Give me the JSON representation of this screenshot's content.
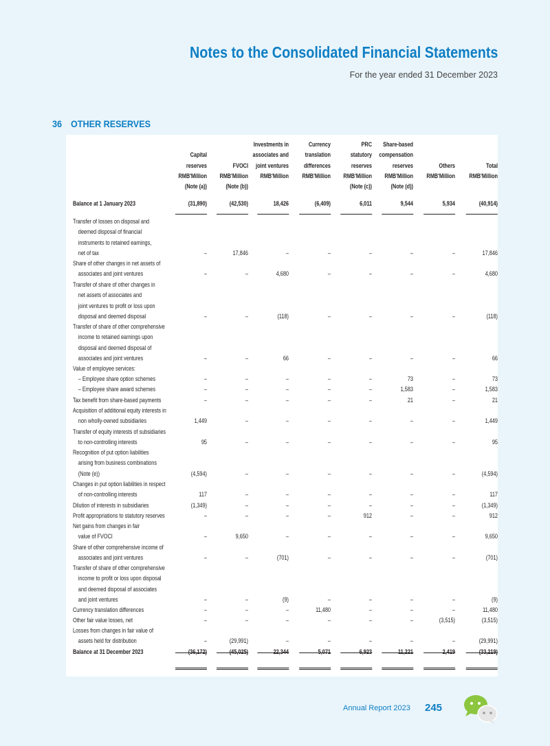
{
  "header": {
    "title": "Notes to the Consolidated Financial Statements",
    "subtitle": "For the year ended 31 December 2023"
  },
  "section": {
    "number": "36",
    "title": "OTHER RESERVES"
  },
  "columns": [
    {
      "lines": [
        "",
        "Capital",
        "reserves",
        "RMB'Million",
        "(Note (a))"
      ]
    },
    {
      "lines": [
        "",
        "",
        "FVOCI",
        "RMB'Million",
        "(Note (b))"
      ]
    },
    {
      "lines": [
        "Investments in",
        "associates and",
        "joint ventures",
        "RMB'Million",
        ""
      ]
    },
    {
      "lines": [
        "Currency",
        "translation",
        "differences",
        "RMB'Million",
        ""
      ]
    },
    {
      "lines": [
        "PRC",
        "statutory",
        "reserves",
        "RMB'Million",
        "(Note (c))"
      ]
    },
    {
      "lines": [
        "Share-based",
        "compensation",
        "reserves",
        "RMB'Million",
        "(Note (d))"
      ]
    },
    {
      "lines": [
        "",
        "",
        "Others",
        "RMB'Million",
        ""
      ]
    },
    {
      "lines": [
        "",
        "",
        "Total",
        "RMB'Million",
        ""
      ]
    }
  ],
  "rows": [
    {
      "label": [
        "Balance at 1 January 2023"
      ],
      "bold": true,
      "values": [
        "(31,890)",
        "(42,530)",
        "18,426",
        "(6,409)",
        "6,011",
        "9,544",
        "5,934",
        "(40,914)"
      ]
    },
    {
      "label": [
        "Transfer of losses on disposal and",
        "deemed disposal of financial",
        "instruments to retained earnings,",
        "net of tax"
      ],
      "values": [
        "–",
        "17,846",
        "–",
        "–",
        "–",
        "–",
        "–",
        "17,846"
      ]
    },
    {
      "label": [
        "Share of other changes in net assets of",
        "associates and joint ventures"
      ],
      "values": [
        "–",
        "–",
        "4,680",
        "–",
        "–",
        "–",
        "–",
        "4,680"
      ]
    },
    {
      "label": [
        "Transfer of share of other changes in",
        "net assets of associates and",
        "joint ventures to profit or loss upon",
        "disposal and deemed disposal"
      ],
      "values": [
        "–",
        "–",
        "(118)",
        "–",
        "–",
        "–",
        "–",
        "(118)"
      ]
    },
    {
      "label": [
        "Transfer of share of other comprehensive",
        "income to retained earnings upon",
        "disposal and deemed disposal of",
        "associates and joint ventures"
      ],
      "values": [
        "–",
        "–",
        "66",
        "–",
        "–",
        "–",
        "–",
        "66"
      ]
    },
    {
      "label": [
        "Value of employee services:"
      ],
      "values": [
        "",
        "",
        "",
        "",
        "",
        "",
        "",
        ""
      ]
    },
    {
      "label": [
        "– Employee share option  schemes"
      ],
      "values": [
        "–",
        "–",
        "–",
        "–",
        "–",
        "73",
        "–",
        "73"
      ]
    },
    {
      "label": [
        "– Employee share award  schemes"
      ],
      "values": [
        "–",
        "–",
        "–",
        "–",
        "–",
        "1,583",
        "–",
        "1,583"
      ]
    },
    {
      "label": [
        "Tax benefit from share-based payments"
      ],
      "values": [
        "–",
        "–",
        "–",
        "–",
        "–",
        "21",
        "–",
        "21"
      ]
    },
    {
      "label": [
        "Acquisition of additional equity interests in",
        "non wholly-owned subsidiaries"
      ],
      "values": [
        "1,449",
        "–",
        "–",
        "–",
        "–",
        "–",
        "–",
        "1,449"
      ]
    },
    {
      "label": [
        "Transfer of equity interests of subsidiaries",
        "to non-controlling interests"
      ],
      "values": [
        "95",
        "–",
        "–",
        "–",
        "–",
        "–",
        "–",
        "95"
      ]
    },
    {
      "label": [
        "Recognition of put option liabilities",
        "arising from business combinations",
        "(Note (e))"
      ],
      "values": [
        "(4,594)",
        "–",
        "–",
        "–",
        "–",
        "–",
        "–",
        "(4,594)"
      ]
    },
    {
      "label": [
        "Changes in put option liabilities in respect",
        "of non-controlling interests"
      ],
      "values": [
        "117",
        "–",
        "–",
        "–",
        "–",
        "–",
        "–",
        "117"
      ]
    },
    {
      "label": [
        "Dilution of interests in subsidiaries"
      ],
      "values": [
        "(1,349)",
        "–",
        "–",
        "–",
        "–",
        "–",
        "–",
        "(1,349)"
      ]
    },
    {
      "label": [
        "Profit appropriations to statutory reserves"
      ],
      "values": [
        "–",
        "–",
        "–",
        "–",
        "912",
        "–",
        "–",
        "912"
      ]
    },
    {
      "label": [
        "Net gains from changes in fair",
        "value of FVOCI"
      ],
      "values": [
        "–",
        "9,650",
        "–",
        "–",
        "–",
        "–",
        "–",
        "9,650"
      ]
    },
    {
      "label": [
        "Share of other comprehensive income of",
        "associates and joint ventures"
      ],
      "values": [
        "–",
        "–",
        "(701)",
        "–",
        "–",
        "–",
        "–",
        "(701)"
      ]
    },
    {
      "label": [
        "Transfer of share of other comprehensive",
        "income to profit or loss upon disposal",
        "and deemed disposal of associates",
        "and joint ventures"
      ],
      "values": [
        "–",
        "–",
        "(9)",
        "–",
        "–",
        "–",
        "–",
        "(9)"
      ]
    },
    {
      "label": [
        "Currency translation differences"
      ],
      "values": [
        "–",
        "–",
        "–",
        "11,480",
        "–",
        "–",
        "–",
        "11,480"
      ]
    },
    {
      "label": [
        "Other fair value losses, net"
      ],
      "values": [
        "–",
        "–",
        "–",
        "–",
        "–",
        "–",
        "(3,515)",
        "(3,515)"
      ]
    },
    {
      "label": [
        "Losses from changes in fair value of",
        "assets held for distribution"
      ],
      "values": [
        "–",
        "(29,991)",
        "–",
        "–",
        "–",
        "–",
        "–",
        "(29,991)"
      ]
    },
    {
      "label": [
        "Balance at 31 December 2023"
      ],
      "bold": true,
      "values": [
        "(36,172)",
        "(45,025)",
        "22,344",
        "5,071",
        "6,923",
        "11,221",
        "2,419",
        "(33,219)"
      ]
    }
  ],
  "footer": {
    "report_label": "Annual Report 2023",
    "page_number": "245",
    "logo_icon": "chat-bubbles-icon"
  }
}
